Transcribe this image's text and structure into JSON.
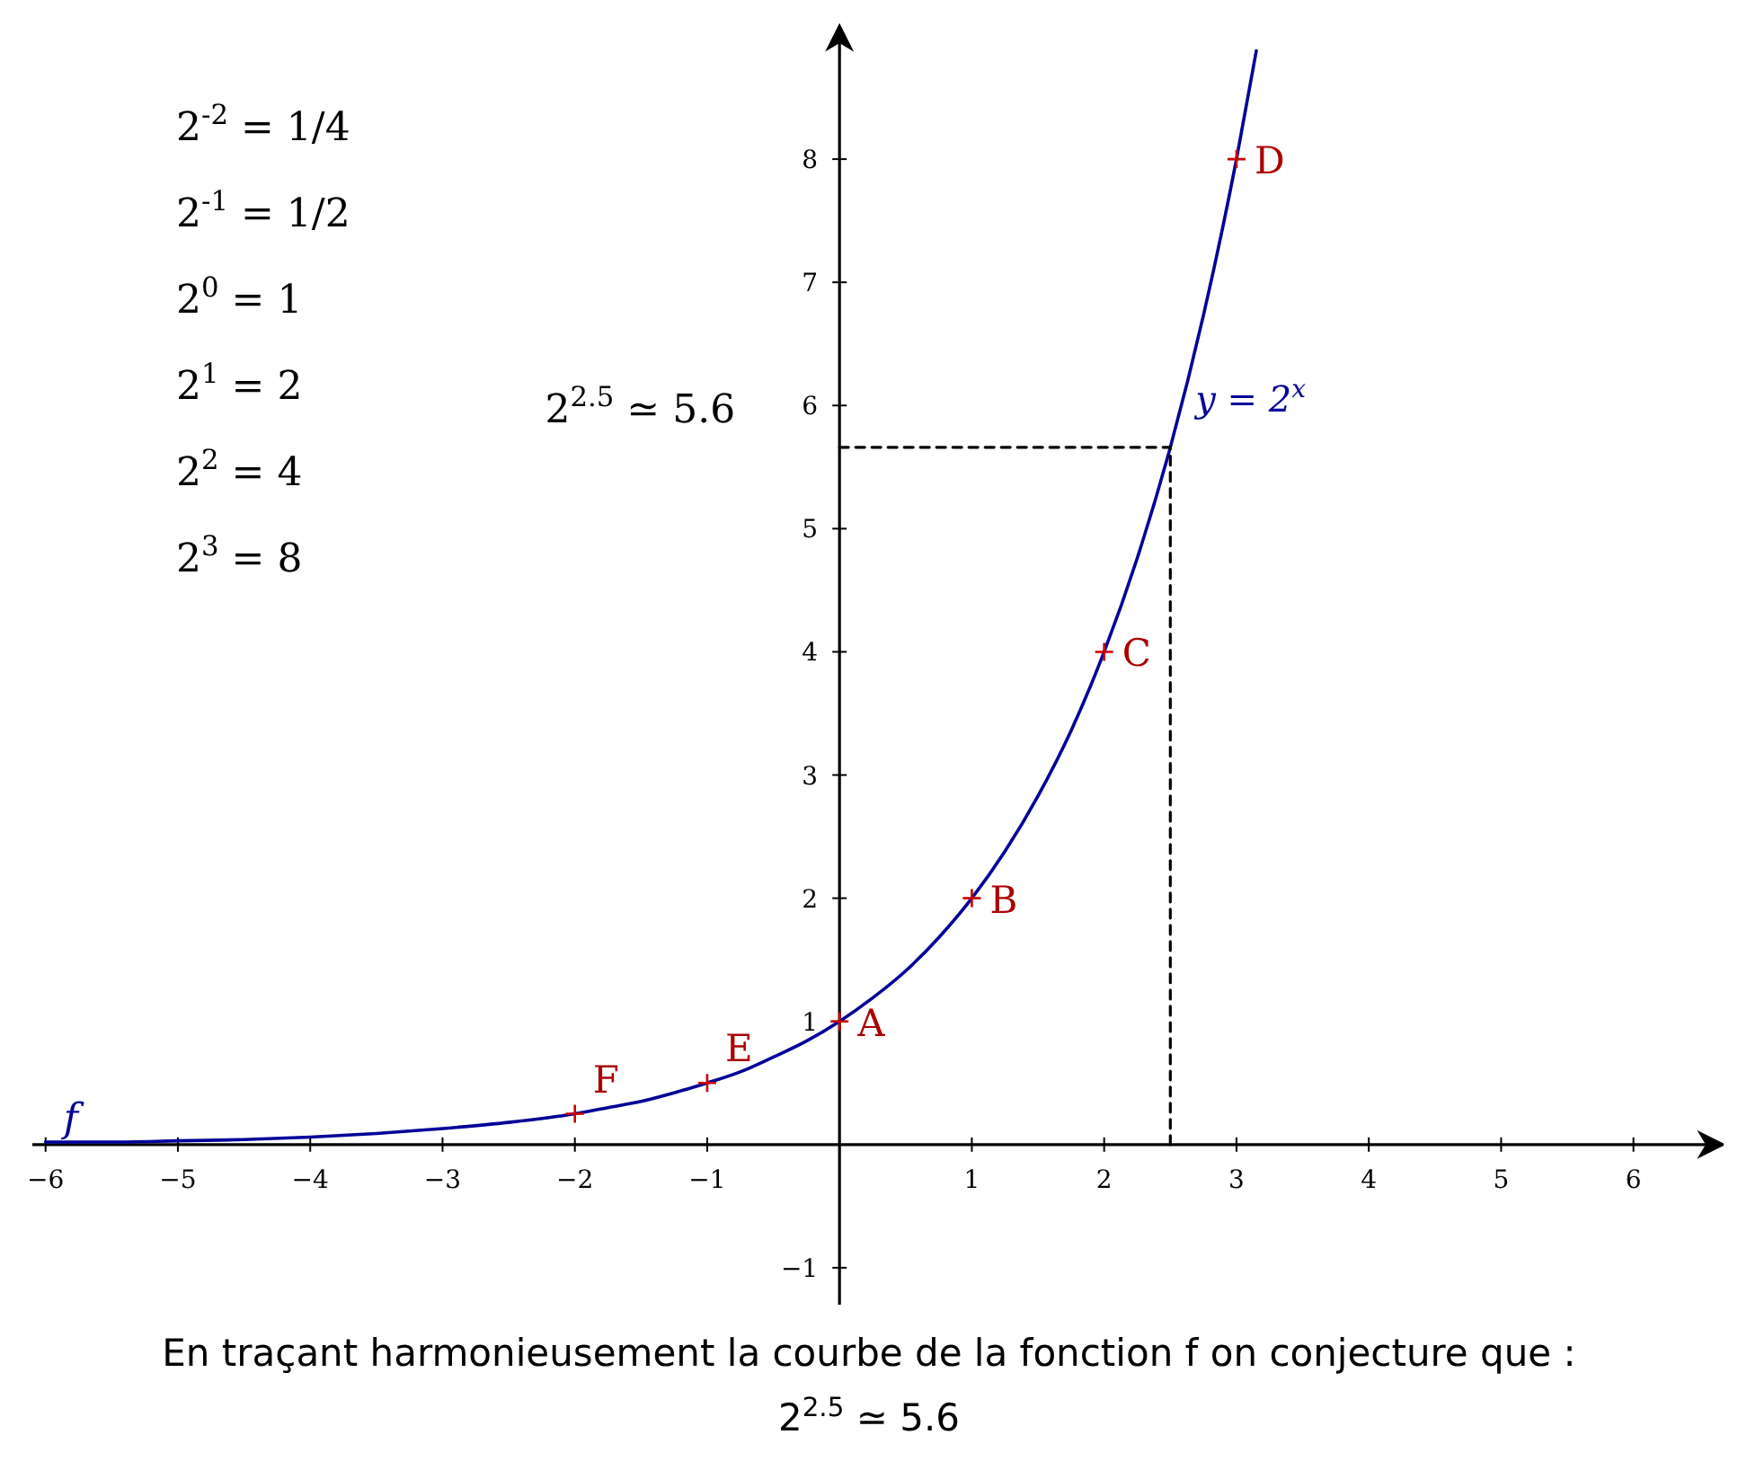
{
  "chart_data": {
    "type": "line",
    "title": "En traçant harmonieusement la courbe de la fonction f on conjecture que :",
    "subtitle": "2$^{2.5}$ ≃ 5.6",
    "xlim": [
      -6.1,
      6.6
    ],
    "ylim": [
      -1.3,
      9
    ],
    "xticks": [
      {
        "value": -6,
        "label": "−6"
      },
      {
        "value": -5,
        "label": "−5"
      },
      {
        "value": -4,
        "label": "−4"
      },
      {
        "value": -3,
        "label": "−3"
      },
      {
        "value": -2,
        "label": "−2"
      },
      {
        "value": -1,
        "label": "−1"
      },
      1,
      2,
      3,
      4,
      5,
      6
    ],
    "yticks": [
      {
        "value": -1,
        "label": "−1"
      },
      1,
      2,
      3,
      4,
      5,
      6,
      7,
      8
    ],
    "grid": false,
    "series": [
      {
        "name": "y = 2$^{x}$",
        "color": "#000099",
        "line_style": "solid",
        "marker": "none",
        "x": [
          -6,
          -5.5,
          -5,
          -4.5,
          -4,
          -3.5,
          -3,
          -2.5,
          -2,
          -1.75,
          -1.5,
          -1.25,
          -1,
          -0.75,
          -0.5,
          -0.25,
          0,
          0.25,
          0.5,
          0.75,
          1,
          1.25,
          1.5,
          1.75,
          2,
          2.25,
          2.5,
          2.75,
          3,
          3.15
        ],
        "values": [
          0.02,
          0.02,
          0.03,
          0.04,
          0.06,
          0.09,
          0.13,
          0.18,
          0.25,
          0.3,
          0.35,
          0.42,
          0.5,
          0.59,
          0.71,
          0.84,
          1,
          1.19,
          1.41,
          1.68,
          2,
          2.38,
          2.83,
          3.36,
          4,
          4.76,
          5.66,
          6.73,
          8,
          8.88
        ]
      },
      {
        "color": "#000000",
        "line_style": "dashed",
        "marker": "none",
        "x": [
          0,
          2.5,
          2.5
        ],
        "values": [
          5.66,
          5.66,
          0
        ]
      },
      {
        "type": "scatter",
        "color": "#cc0000",
        "marker": "cross",
        "x": [
          0,
          1,
          2,
          3,
          -1,
          -2
        ],
        "values": [
          1,
          2,
          4,
          8,
          0.5,
          0.25
        ]
      }
    ],
    "annotations": [
      "2$^{-2}$ = 1/4",
      "2$^{-1}$ = 1/2",
      "2$^{0}$ = 1",
      "2$^{1}$ = 2",
      "2$^{2}$ = 4",
      "2$^{3}$ = 8",
      {
        "text": "2$^{2.5}$ ≃ 5.6",
        "x": 0,
        "y": 5.66
      },
      {
        "text": "A",
        "x": 0,
        "y": 1
      },
      {
        "text": "B",
        "x": 1,
        "y": 2
      },
      {
        "text": "C",
        "x": 2,
        "y": 4
      },
      {
        "text": "D",
        "x": 3,
        "y": 8
      },
      {
        "text": "E",
        "x": -1,
        "y": 0.5
      },
      {
        "text": "F",
        "x": -2,
        "y": 0.25
      },
      {
        "text": "f",
        "x": -6,
        "y": 0.02
      }
    ]
  }
}
